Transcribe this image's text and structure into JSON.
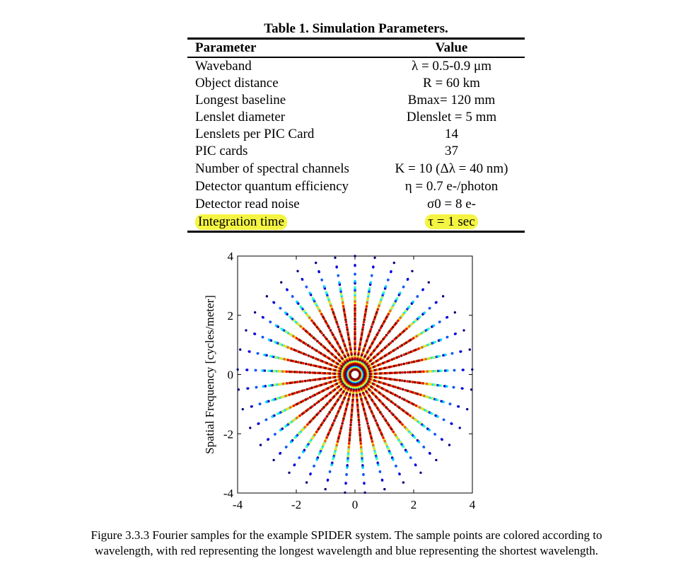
{
  "table": {
    "title": "Table 1. Simulation Parameters.",
    "col_param": "Parameter",
    "col_value": "Value",
    "rows": [
      {
        "param": "Waveband",
        "value": "λ = 0.5-0.9 μm"
      },
      {
        "param": "Object distance",
        "value": "R = 60 km"
      },
      {
        "param": "Longest baseline",
        "value": "Bmax= 120 mm"
      },
      {
        "param": "Lenslet diameter",
        "value": "Dlenslet = 5 mm"
      },
      {
        "param": "Lenslets per PIC Card",
        "value": "14"
      },
      {
        "param": "PIC cards",
        "value": "37"
      },
      {
        "param": "Number of spectral channels",
        "value": "K = 10 (Δλ = 40 nm)"
      },
      {
        "param": "Detector quantum efficiency",
        "value": "η = 0.7 e-/photon"
      },
      {
        "param": "Detector read noise",
        "value": "σ0 = 8 e-"
      },
      {
        "param": "Integration time",
        "value": "τ = 1 sec",
        "highlight": true
      }
    ],
    "highlight_color": "#f4f542"
  },
  "chart_data": {
    "type": "scatter",
    "ylabel": "Spatial Frequency [cycles/meter]",
    "xlabel": "",
    "xlim": [
      -4,
      4
    ],
    "ylim": [
      -4,
      4
    ],
    "x_ticks": [
      "-4",
      "-2",
      "0",
      "2",
      "4"
    ],
    "y_ticks": [
      "4",
      "2",
      "0",
      "-2",
      "-4"
    ],
    "spokes": 37,
    "max_radius": 4,
    "colormap": "jet (red = longest wavelength, blue = shortest wavelength)",
    "grid": false
  },
  "caption": {
    "line1": "Figure 3.3.3 Fourier samples   for the example SPIDER system. The sample points are colored according to",
    "line2": "wavelength, with red representing the longest wavelength and blue representing the shortest wavelength."
  }
}
